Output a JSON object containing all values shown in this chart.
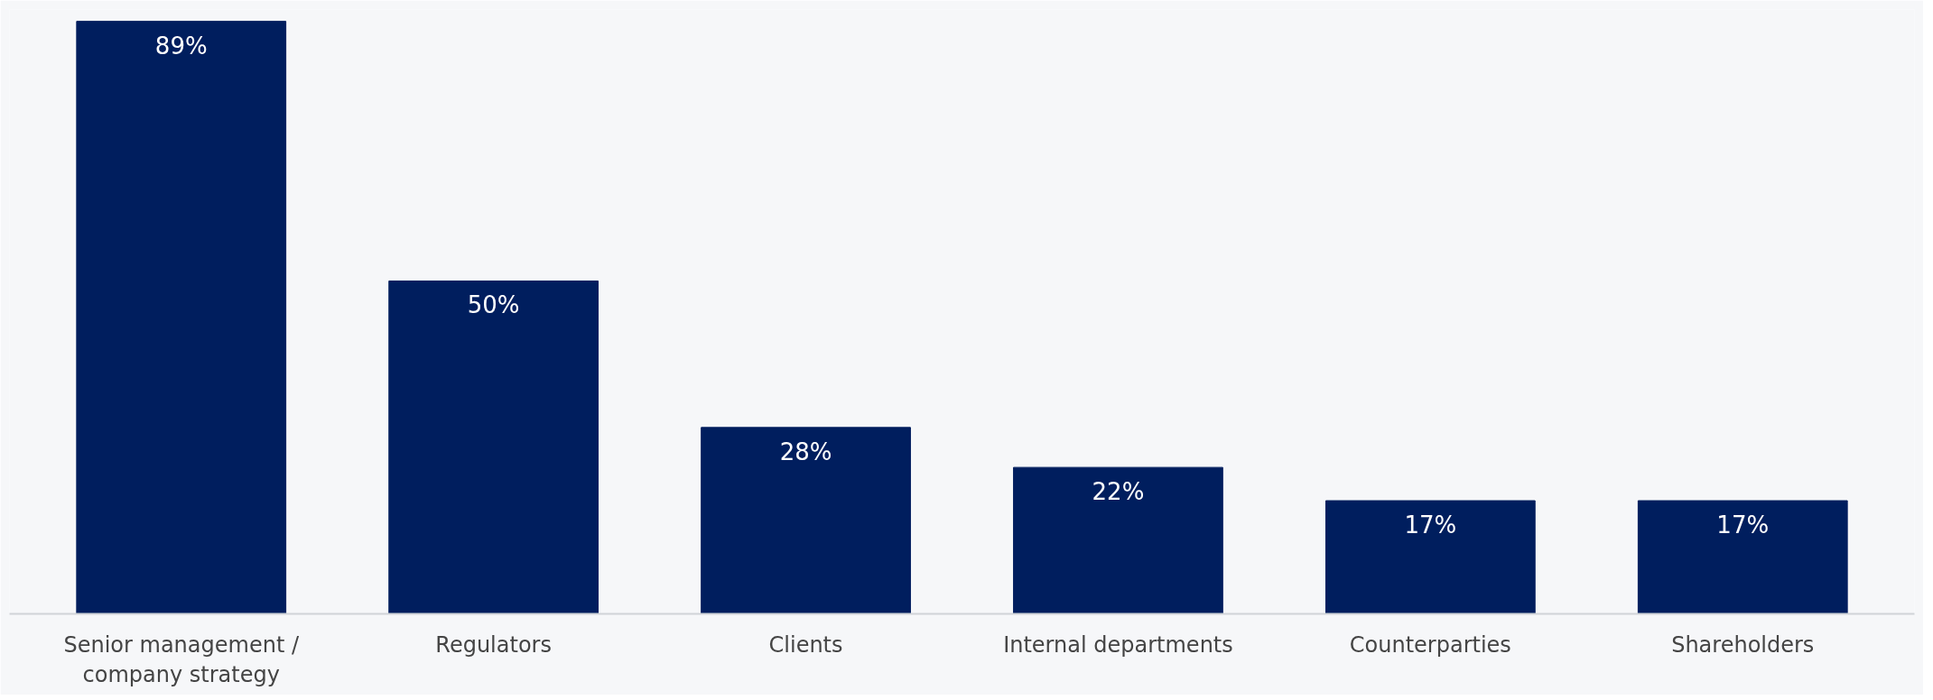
{
  "chart_data": {
    "type": "bar",
    "categories": [
      "Senior management /\ncompany strategy",
      "Regulators",
      "Clients",
      "Internal departments",
      "Counterparties",
      "Shareholders"
    ],
    "values": [
      89,
      50,
      28,
      22,
      17,
      17
    ],
    "value_labels": [
      "89%",
      "50%",
      "28%",
      "22%",
      "17%",
      "17%"
    ],
    "color": "#001e5e",
    "grid": false
  }
}
